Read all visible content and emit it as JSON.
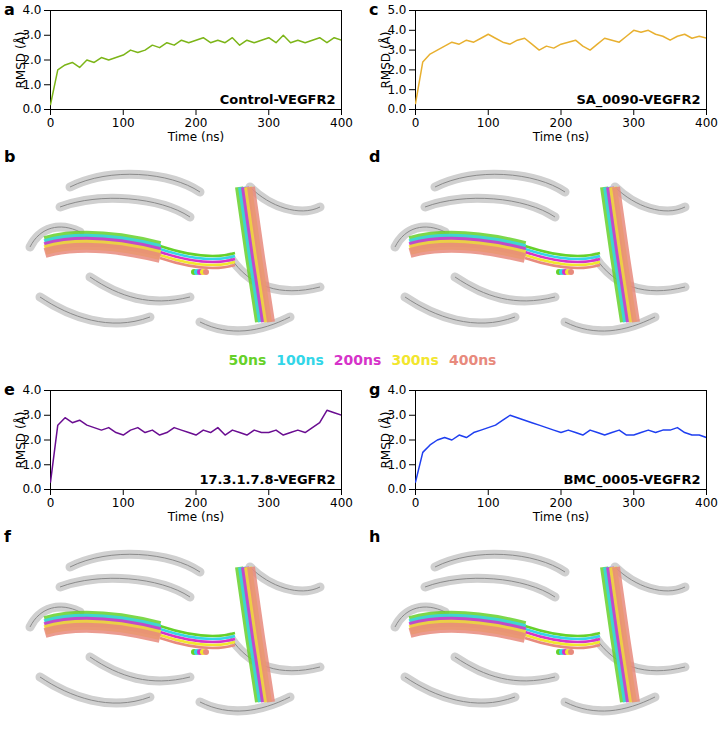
{
  "chart_data": [
    {
      "type": "line",
      "panel": "a",
      "annotation": "Control-VEGFR2",
      "x_label": "Time (ns)",
      "y_label": "RMSD (Å)",
      "x": [
        0,
        10,
        20,
        30,
        40,
        50,
        60,
        70,
        80,
        90,
        100,
        110,
        120,
        130,
        140,
        150,
        160,
        170,
        180,
        190,
        200,
        210,
        220,
        230,
        240,
        250,
        260,
        270,
        280,
        290,
        300,
        310,
        320,
        330,
        340,
        350,
        360,
        370,
        380,
        390,
        400
      ],
      "series": [
        {
          "color": "#7cb518",
          "values": [
            0.2,
            1.6,
            1.8,
            1.9,
            1.7,
            2.0,
            1.9,
            2.1,
            2.0,
            2.1,
            2.2,
            2.4,
            2.3,
            2.4,
            2.6,
            2.5,
            2.7,
            2.6,
            2.8,
            2.7,
            2.8,
            2.9,
            2.7,
            2.8,
            2.7,
            2.9,
            2.6,
            2.8,
            2.7,
            2.8,
            2.9,
            2.7,
            3.0,
            2.7,
            2.8,
            2.7,
            2.8,
            2.9,
            2.7,
            2.9,
            2.8
          ]
        }
      ],
      "xlim": [
        0,
        400
      ],
      "xticks": [
        0,
        100,
        200,
        300,
        400
      ],
      "ylim": [
        0,
        4
      ],
      "yticks": [
        0,
        1,
        2,
        3,
        4
      ]
    },
    {
      "type": "line",
      "panel": "c",
      "annotation": "SA_0090-VEGFR2",
      "x_label": "Time (ns)",
      "y_label": "RMSD (Å)",
      "x": [
        0,
        10,
        20,
        30,
        40,
        50,
        60,
        70,
        80,
        90,
        100,
        110,
        120,
        130,
        140,
        150,
        160,
        170,
        180,
        190,
        200,
        210,
        220,
        230,
        240,
        250,
        260,
        270,
        280,
        290,
        300,
        310,
        320,
        330,
        340,
        350,
        360,
        370,
        380,
        390,
        400
      ],
      "series": [
        {
          "color": "#e8b030",
          "values": [
            0.3,
            2.4,
            2.8,
            3.0,
            3.2,
            3.4,
            3.3,
            3.5,
            3.4,
            3.6,
            3.8,
            3.6,
            3.4,
            3.3,
            3.5,
            3.6,
            3.3,
            3.0,
            3.2,
            3.1,
            3.3,
            3.4,
            3.5,
            3.2,
            3.0,
            3.3,
            3.6,
            3.5,
            3.4,
            3.7,
            4.0,
            3.9,
            4.0,
            3.8,
            3.7,
            3.5,
            3.7,
            3.8,
            3.6,
            3.7,
            3.6
          ]
        }
      ],
      "xlim": [
        0,
        400
      ],
      "xticks": [
        0,
        100,
        200,
        300,
        400
      ],
      "ylim": [
        0,
        5
      ],
      "yticks": [
        0,
        1,
        2,
        3,
        4,
        5
      ]
    },
    {
      "type": "line",
      "panel": "e",
      "annotation": "17.3.1.7.8-VEGFR2",
      "x_label": "Time (ns)",
      "y_label": "RMSD (Å)",
      "x": [
        0,
        10,
        20,
        30,
        40,
        50,
        60,
        70,
        80,
        90,
        100,
        110,
        120,
        130,
        140,
        150,
        160,
        170,
        180,
        190,
        200,
        210,
        220,
        230,
        240,
        250,
        260,
        270,
        280,
        290,
        300,
        310,
        320,
        330,
        340,
        350,
        360,
        370,
        380,
        390,
        400
      ],
      "series": [
        {
          "color": "#6a0d91",
          "values": [
            0.3,
            2.6,
            2.9,
            2.7,
            2.8,
            2.6,
            2.5,
            2.4,
            2.5,
            2.3,
            2.2,
            2.4,
            2.5,
            2.3,
            2.4,
            2.2,
            2.3,
            2.5,
            2.4,
            2.3,
            2.2,
            2.4,
            2.3,
            2.5,
            2.2,
            2.4,
            2.3,
            2.2,
            2.4,
            2.3,
            2.3,
            2.4,
            2.2,
            2.3,
            2.4,
            2.3,
            2.5,
            2.7,
            3.2,
            3.1,
            3.0
          ]
        }
      ],
      "xlim": [
        0,
        400
      ],
      "xticks": [
        0,
        100,
        200,
        300,
        400
      ],
      "ylim": [
        0,
        4
      ],
      "yticks": [
        0,
        1,
        2,
        3,
        4
      ]
    },
    {
      "type": "line",
      "panel": "g",
      "annotation": "BMC_0005-VEGFR2",
      "x_label": "Time (ns)",
      "y_label": "RMSD (Å)",
      "x": [
        0,
        10,
        20,
        30,
        40,
        50,
        60,
        70,
        80,
        90,
        100,
        110,
        120,
        130,
        140,
        150,
        160,
        170,
        180,
        190,
        200,
        210,
        220,
        230,
        240,
        250,
        260,
        270,
        280,
        290,
        300,
        310,
        320,
        330,
        340,
        350,
        360,
        370,
        380,
        390,
        400
      ],
      "series": [
        {
          "color": "#1f3ff0",
          "values": [
            0.3,
            1.5,
            1.8,
            2.0,
            2.1,
            2.0,
            2.2,
            2.1,
            2.3,
            2.4,
            2.5,
            2.6,
            2.8,
            3.0,
            2.9,
            2.8,
            2.7,
            2.6,
            2.5,
            2.4,
            2.3,
            2.4,
            2.3,
            2.2,
            2.4,
            2.3,
            2.2,
            2.3,
            2.4,
            2.2,
            2.2,
            2.3,
            2.4,
            2.3,
            2.4,
            2.4,
            2.5,
            2.3,
            2.2,
            2.2,
            2.1
          ]
        }
      ],
      "xlim": [
        0,
        400
      ],
      "xticks": [
        0,
        100,
        200,
        300,
        400
      ],
      "ylim": [
        0,
        4
      ],
      "yticks": [
        0,
        1,
        2,
        3,
        4
      ]
    }
  ],
  "structure_panels": [
    "b",
    "d",
    "f",
    "h"
  ],
  "snapshots": [
    {
      "label": "50ns",
      "color": "#66d12a"
    },
    {
      "label": "100ns",
      "color": "#33d6e8"
    },
    {
      "label": "200ns",
      "color": "#d633c9"
    },
    {
      "label": "300ns",
      "color": "#f2e62e"
    },
    {
      "label": "400ns",
      "color": "#e88a7d"
    }
  ]
}
